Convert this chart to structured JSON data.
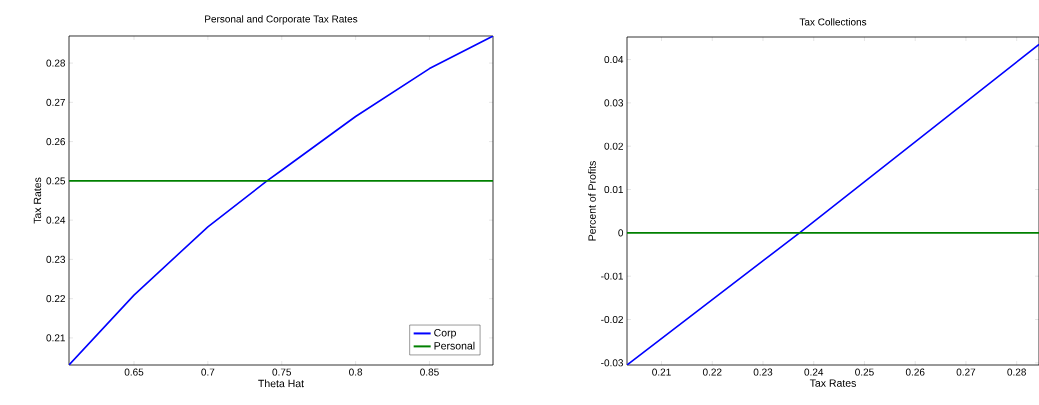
{
  "chart_data": [
    {
      "type": "line",
      "title": "Personal and Corporate Tax Rates",
      "xlabel": "Theta Hat",
      "ylabel": "Tax Rates",
      "xlim": [
        0.606,
        0.893
      ],
      "ylim": [
        0.2031,
        0.2869
      ],
      "xticks": [
        0.65,
        0.7,
        0.75,
        0.8,
        0.85
      ],
      "yticks": [
        0.21,
        0.22,
        0.23,
        0.24,
        0.25,
        0.26,
        0.27,
        0.28
      ],
      "legend": "bottom right",
      "series": [
        {
          "name": "Corp",
          "color": "#0000ff",
          "x": [
            0.606,
            0.65,
            0.7,
            0.74,
            0.75,
            0.8,
            0.85,
            0.893
          ],
          "values": [
            0.2031,
            0.2209,
            0.2383,
            0.25,
            0.2527,
            0.2664,
            0.2786,
            0.2869
          ]
        },
        {
          "name": "Personal",
          "color": "#008000",
          "x": [
            0.606,
            0.893
          ],
          "values": [
            0.25,
            0.25
          ]
        }
      ]
    },
    {
      "type": "line",
      "title": "Tax Collections",
      "xlabel": "Tax Rates",
      "ylabel": "Percent of Profits",
      "xlim": [
        0.2032,
        0.2844
      ],
      "ylim": [
        -0.0305,
        0.0452
      ],
      "xticks": [
        0.21,
        0.22,
        0.23,
        0.24,
        0.25,
        0.26,
        0.27,
        0.28
      ],
      "yticks": [
        -0.03,
        -0.02,
        -0.01,
        0,
        0.01,
        0.02,
        0.03,
        0.04
      ],
      "series": [
        {
          "color": "#0000ff",
          "x": [
            0.2032,
            0.2372,
            0.2844
          ],
          "values": [
            -0.0305,
            0,
            0.0435
          ]
        },
        {
          "color": "#008000",
          "x": [
            0.2032,
            0.2844
          ],
          "values": [
            0,
            0
          ]
        }
      ]
    }
  ]
}
